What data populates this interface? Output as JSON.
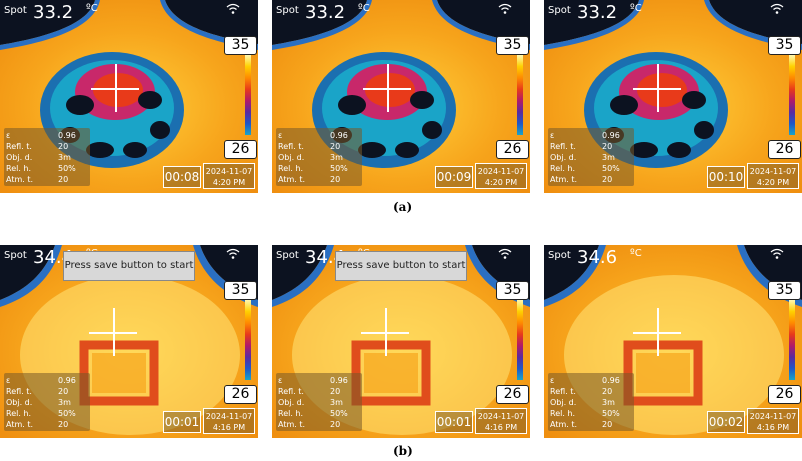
{
  "common": {
    "spot_label": "Spot",
    "unit_label": "ºC",
    "scale_max": "35",
    "scale_min": "26",
    "params": [
      {
        "label": "ε",
        "value": "0.96"
      },
      {
        "label": "Refl. t.",
        "value": "20"
      },
      {
        "label": "Obj. d.",
        "value": "3m"
      },
      {
        "label": "Rel. h.",
        "value": "50%"
      },
      {
        "label": "Atm. t.",
        "value": "20"
      }
    ]
  },
  "row_a": {
    "caption": "(a)",
    "panels": [
      {
        "spot_value": "33.2",
        "time": "00:08",
        "date": "2024-11-07",
        "clock": "4:20 PM"
      },
      {
        "spot_value": "33.2",
        "time": "00:09",
        "date": "2024-11-07",
        "clock": "4:20 PM"
      },
      {
        "spot_value": "33.2",
        "time": "00:10",
        "date": "2024-11-07",
        "clock": "4:20 PM"
      }
    ]
  },
  "row_b": {
    "caption": "(b)",
    "toast": "Press save button to start",
    "panels": [
      {
        "spot_value": "34.4",
        "time": "00:01",
        "date": "2024-11-07",
        "clock": "4:16 PM"
      },
      {
        "spot_value": "34.4",
        "time": "00:01",
        "date": "2024-11-07",
        "clock": "4:16 PM"
      },
      {
        "spot_value": "34.6",
        "time": "00:02",
        "date": "2024-11-07",
        "clock": "4:16 PM"
      }
    ]
  },
  "colors": {
    "warm": "#f5a623",
    "hot": "#ffd84a",
    "cold": "#0c1220",
    "band": "#2a6fc2"
  }
}
